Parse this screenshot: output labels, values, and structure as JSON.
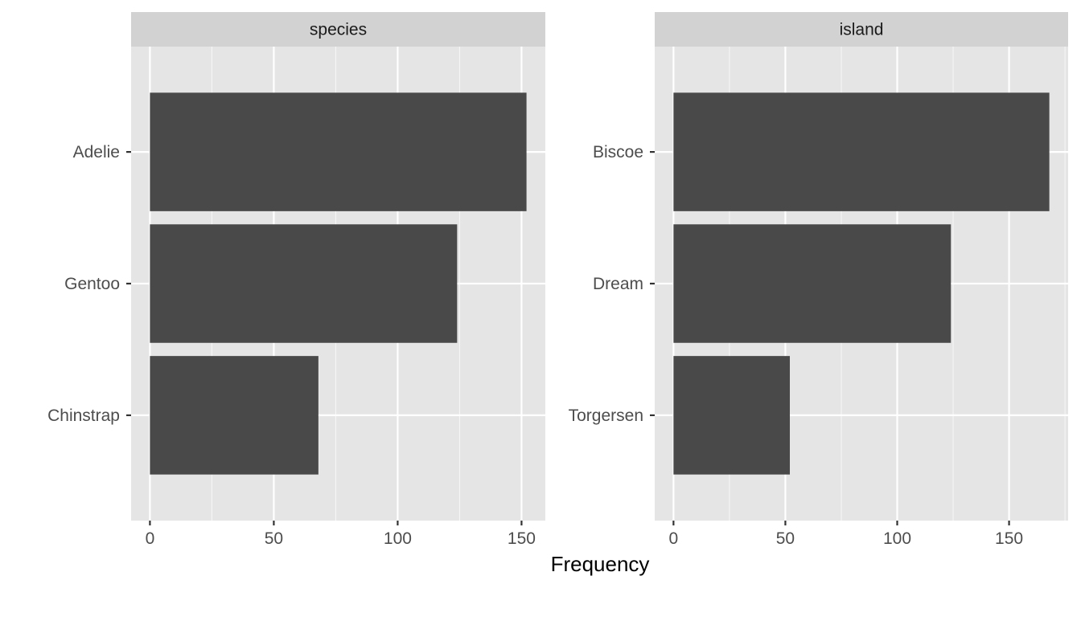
{
  "chart_data": {
    "type": "bar",
    "orientation": "horizontal",
    "xlabel": "Frequency",
    "grid": true,
    "panels": [
      {
        "strip_label": "species",
        "categories": [
          "Adelie",
          "Gentoo",
          "Chinstrap"
        ],
        "values": [
          152,
          124,
          68
        ],
        "xlim": [
          -7.6,
          159.6
        ],
        "xticks": [
          0,
          50,
          100,
          150
        ]
      },
      {
        "strip_label": "island",
        "categories": [
          "Biscoe",
          "Dream",
          "Torgersen"
        ],
        "values": [
          168,
          124,
          52
        ],
        "xlim": [
          -8.4,
          176.4
        ],
        "xticks": [
          0,
          50,
          100,
          150
        ]
      }
    ],
    "colors": {
      "bar": "#494949",
      "panel_background": "#e5e5e5",
      "strip_background": "#d2d2d2",
      "grid": "#ffffff"
    }
  }
}
